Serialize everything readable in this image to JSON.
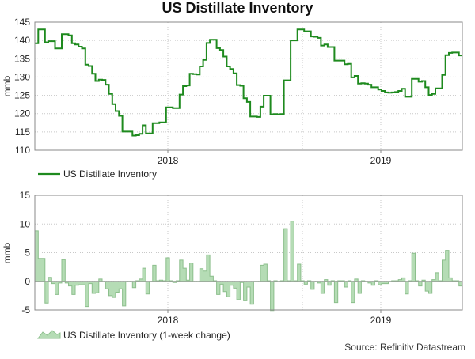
{
  "title": "US Distillate Inventory",
  "source": "Source: Refinitiv Datastream",
  "colors": {
    "line": "#1e8a1e",
    "area_fill": "#b5dcb5",
    "area_stroke": "#8cbf8c",
    "grid": "#c8c8c8"
  },
  "chart_data": [
    {
      "type": "line",
      "title": "US Distillate Inventory",
      "ylabel": "mmb",
      "ylim": [
        110,
        145
      ],
      "yticks": [
        110,
        115,
        120,
        125,
        130,
        135,
        140,
        145
      ],
      "xticks": [
        "2018",
        "2019"
      ],
      "legend": "US Distillate Inventory",
      "legend_position": "bottom-left",
      "step": true,
      "values": [
        139.2,
        143.0,
        143.0,
        139.5,
        139.8,
        139.8,
        137.8,
        137.8,
        141.7,
        141.7,
        141.4,
        139.2,
        138.9,
        138.3,
        137.8,
        133.4,
        133.0,
        130.9,
        128.9,
        129.3,
        129.2,
        127.9,
        125.4,
        122.6,
        120.7,
        119.4,
        115.1,
        115.1,
        115.1,
        114.0,
        114.1,
        114.5,
        116.8,
        114.6,
        114.6,
        117.4,
        117.4,
        117.6,
        117.6,
        121.7,
        121.7,
        121.5,
        121.5,
        125.2,
        127.5,
        127.7,
        130.9,
        130.8,
        130.7,
        132.9,
        134.7,
        139.3,
        140.2,
        140.2,
        137.9,
        137.4,
        135.6,
        132.9,
        132.2,
        131.0,
        127.8,
        127.6,
        124.2,
        123.2,
        119.2,
        119.2,
        119.1,
        121.9,
        124.9,
        124.9,
        119.8,
        119.9,
        119.8,
        119.9,
        129.1,
        129.1,
        140.0,
        140.0,
        143.0,
        143.0,
        142.5,
        142.5,
        141.1,
        141.0,
        140.7,
        138.6,
        138.9,
        138.2,
        138.2,
        134.5,
        134.5,
        134.5,
        133.5,
        133.6,
        129.9,
        130.3,
        128.2,
        128.3,
        128.2,
        127.9,
        127.2,
        127.2,
        126.6,
        126.2,
        125.8,
        125.7,
        125.8,
        125.9,
        126.2,
        126.8,
        124.6,
        124.6,
        129.5,
        129.5,
        128.7,
        128.9,
        127.2,
        125.1,
        125.4,
        126.9,
        126.9,
        130.6,
        136.0,
        136.6,
        136.7,
        136.7,
        135.9
      ]
    },
    {
      "type": "area",
      "title": "",
      "ylabel": "mmb",
      "ylim": [
        -5,
        15
      ],
      "yticks": [
        -5,
        0,
        5,
        10,
        15
      ],
      "xticks": [
        "2018",
        "2019"
      ],
      "legend": "US Distillate Inventory (1-week change)",
      "legend_position": "bottom-left",
      "step": true,
      "values": [
        8.8,
        4.0,
        4.0,
        -3.8,
        0.7,
        -0.4,
        -2.3,
        -0.3,
        3.8,
        -0.3,
        -0.8,
        -2.3,
        -0.7,
        -0.6,
        -0.6,
        -4.4,
        -0.4,
        -2.1,
        -2.0,
        0.4,
        -0.1,
        -1.3,
        -2.5,
        -2.8,
        -1.9,
        -1.3,
        -4.3,
        -0.1,
        -0.1,
        -1.1,
        0.1,
        0.4,
        2.3,
        -2.2,
        -0.1,
        2.8,
        0.1,
        0.2,
        0.1,
        4.1,
        0.1,
        -0.2,
        0.1,
        3.7,
        2.3,
        0.2,
        3.2,
        -0.1,
        -0.1,
        2.2,
        1.8,
        4.6,
        0.9,
        0.1,
        -2.3,
        -0.5,
        -1.8,
        -2.7,
        -0.7,
        -1.2,
        -3.2,
        -0.2,
        -3.4,
        -1.0,
        -4.0,
        -0.1,
        -0.1,
        2.8,
        3.0,
        0.1,
        -5.1,
        0.1,
        -0.1,
        0.1,
        9.2,
        0.1,
        10.5,
        0.1,
        3.0,
        0.1,
        -0.5,
        0.1,
        -1.4,
        -0.1,
        -0.3,
        -2.1,
        0.3,
        -0.7,
        0.1,
        -3.7,
        0.1,
        0.1,
        -1.0,
        0.1,
        -3.7,
        0.4,
        -2.1,
        0.1,
        -0.1,
        -0.3,
        -0.7,
        0.1,
        -0.6,
        -0.4,
        -0.4,
        -0.1,
        0.1,
        0.1,
        0.3,
        0.6,
        -2.2,
        0.1,
        4.9,
        0.1,
        -0.8,
        0.2,
        -1.7,
        -2.1,
        0.3,
        1.5,
        0.1,
        3.7,
        5.4,
        0.6,
        0.1,
        0.1,
        -0.8
      ]
    }
  ]
}
